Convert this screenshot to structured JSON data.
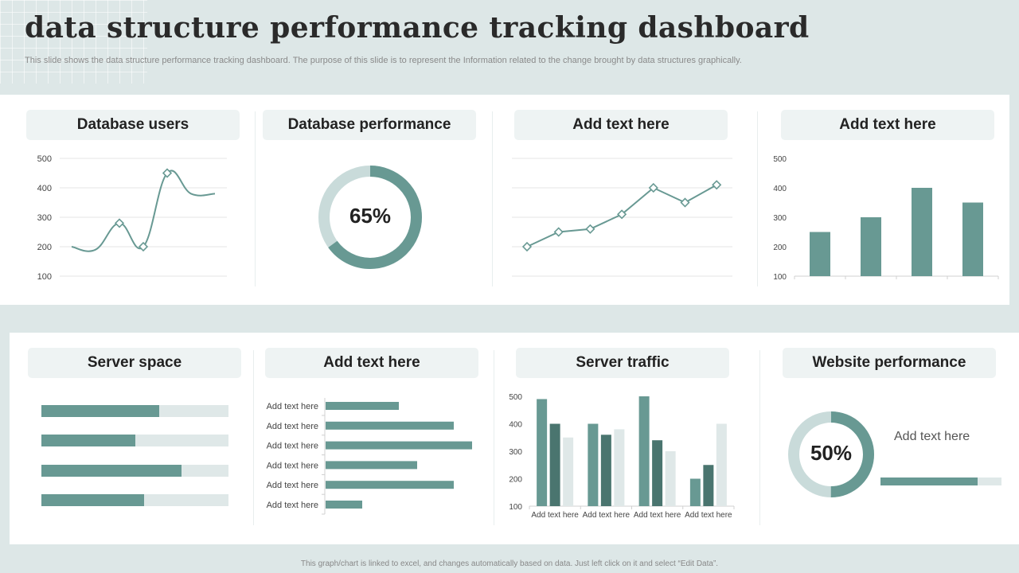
{
  "header": {
    "title": "data structure performance tracking dashboard",
    "subtitle": "This slide shows the data structure performance tracking dashboard. The purpose of this slide is to represent the Information related to the change brought by data structures graphically."
  },
  "footer": "This graph/chart is linked to excel, and changes automatically based on data. Just left click on it and select “Edit Data”.",
  "colors": {
    "accent": "#689993",
    "dark": "#4a756f",
    "light": "#dfe8e8",
    "pill": "#eef3f3",
    "background": "#dde7e7"
  },
  "cards": {
    "c1": "Database users",
    "c2": "Database performance",
    "c3": "Add text here",
    "c4": "Add text here",
    "c5": "Server space",
    "c6": "Add text here",
    "c7": "Server traffic",
    "c8": "Website performance"
  },
  "website_note": "Add text here",
  "chart_data": [
    {
      "id": "database_users",
      "type": "line",
      "smooth": true,
      "yticks": [
        100,
        200,
        300,
        400,
        500
      ],
      "ylim": [
        100,
        500
      ],
      "x": [
        1,
        2,
        3,
        4,
        5,
        6,
        7
      ],
      "values": [
        200,
        190,
        280,
        200,
        450,
        380,
        380
      ],
      "markers": [
        false,
        false,
        true,
        true,
        true,
        false,
        false
      ]
    },
    {
      "id": "database_performance",
      "type": "pie",
      "donut": true,
      "value": 65,
      "label": "65%"
    },
    {
      "id": "add_text_line",
      "type": "line",
      "ylim": [
        100,
        500
      ],
      "values": [
        200,
        250,
        260,
        310,
        400,
        350,
        410
      ]
    },
    {
      "id": "add_text_bar",
      "type": "bar",
      "yticks": [
        100,
        200,
        300,
        400,
        500
      ],
      "ylim": [
        100,
        500
      ],
      "values": [
        250,
        300,
        400,
        350
      ]
    },
    {
      "id": "server_space",
      "type": "bar",
      "orientation": "horizontal",
      "values": [
        0.63,
        0.5,
        0.75,
        0.55
      ]
    },
    {
      "id": "add_text_hbar",
      "type": "bar",
      "orientation": "horizontal",
      "categories": [
        "Add text here",
        "Add text here",
        "Add text here",
        "Add text here",
        "Add text here",
        "Add text here"
      ],
      "values": [
        0.4,
        0.7,
        0.8,
        0.5,
        0.7,
        0.2
      ]
    },
    {
      "id": "server_traffic",
      "type": "bar",
      "yticks": [
        100,
        200,
        300,
        400,
        500
      ],
      "ylim": [
        100,
        500
      ],
      "categories": [
        "Add text here",
        "Add text here",
        "Add text here",
        "Add text here"
      ],
      "series": [
        {
          "values": [
            490,
            400,
            500,
            200
          ]
        },
        {
          "values": [
            400,
            360,
            340,
            250
          ]
        },
        {
          "values": [
            350,
            380,
            300,
            400
          ]
        }
      ]
    },
    {
      "id": "website_performance",
      "type": "pie",
      "donut": true,
      "value": 50,
      "label": "50%",
      "progress": 0.8
    }
  ]
}
